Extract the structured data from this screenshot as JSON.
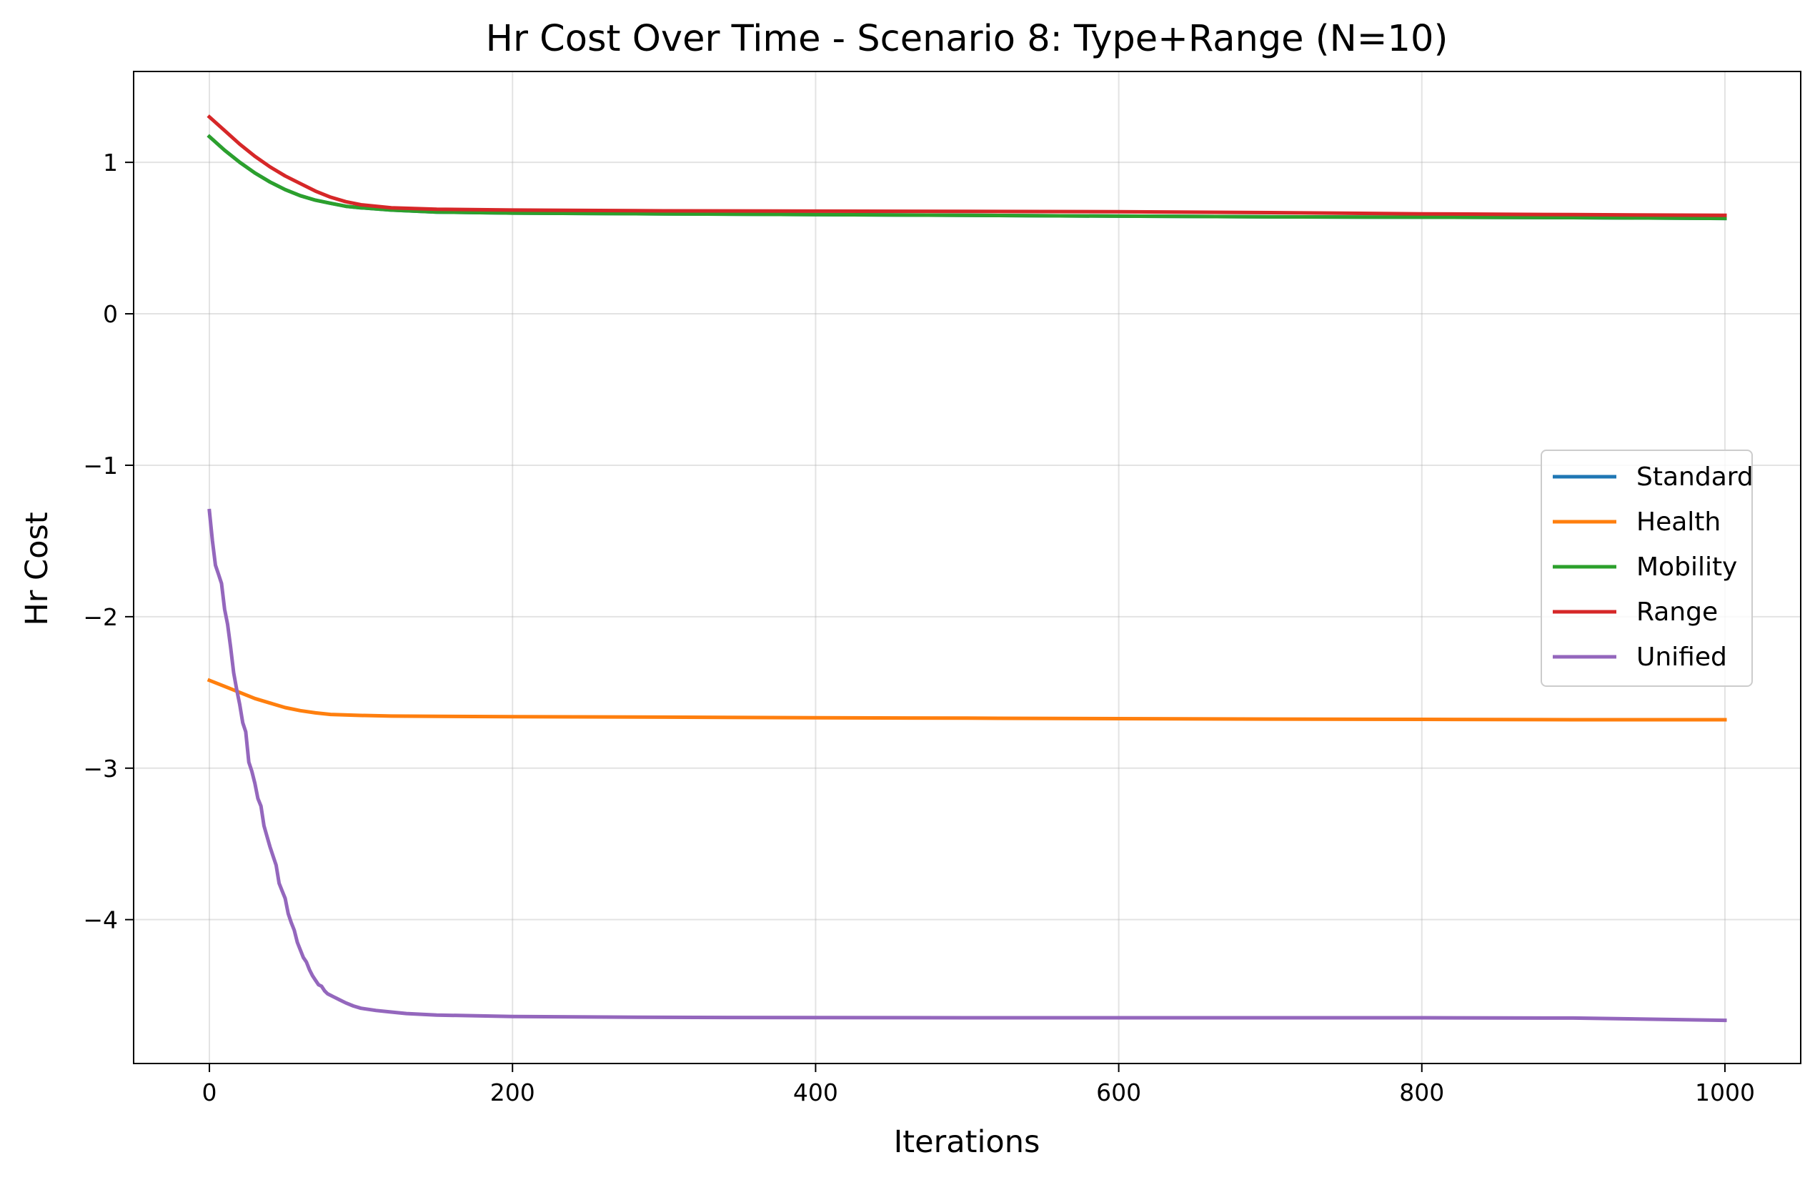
{
  "chart_data": {
    "type": "line",
    "title": "Hr Cost Over Time - Scenario 8: Type+Range (N=10)",
    "xlabel": "Iterations",
    "ylabel": "Hr Cost",
    "xlim": [
      -50,
      1050
    ],
    "ylim": [
      -4.95,
      1.6
    ],
    "xticks": [
      0,
      200,
      400,
      600,
      800,
      1000
    ],
    "yticks": [
      1,
      0,
      -1,
      -2,
      -3,
      -4
    ],
    "ytick_labels": [
      "1",
      "0",
      "−1",
      "−2",
      "−3",
      "−4"
    ],
    "grid": true,
    "legend_position": "center-right",
    "series": [
      {
        "name": "Standard",
        "color": "#1f77b4",
        "x": [
          0,
          10,
          20,
          30,
          40,
          50,
          60,
          70,
          80,
          90,
          100,
          120,
          150,
          200,
          300,
          400,
          500,
          600,
          700,
          800,
          900,
          1000
        ],
        "y": [
          1.17,
          1.08,
          1.0,
          0.93,
          0.87,
          0.82,
          0.78,
          0.75,
          0.73,
          0.71,
          0.7,
          0.685,
          0.672,
          0.665,
          0.66,
          0.655,
          0.65,
          0.645,
          0.64,
          0.638,
          0.635,
          0.63
        ]
      },
      {
        "name": "Health",
        "color": "#ff7f0e",
        "x": [
          0,
          10,
          20,
          30,
          40,
          50,
          60,
          70,
          80,
          100,
          120,
          150,
          200,
          300,
          400,
          500,
          600,
          700,
          800,
          900,
          1000
        ],
        "y": [
          -2.42,
          -2.46,
          -2.5,
          -2.54,
          -2.57,
          -2.6,
          -2.62,
          -2.635,
          -2.645,
          -2.652,
          -2.656,
          -2.658,
          -2.66,
          -2.663,
          -2.667,
          -2.67,
          -2.673,
          -2.676,
          -2.678,
          -2.68,
          -2.68
        ]
      },
      {
        "name": "Mobility",
        "color": "#2ca02c",
        "x": [
          0,
          10,
          20,
          30,
          40,
          50,
          60,
          70,
          80,
          90,
          100,
          120,
          150,
          200,
          300,
          400,
          500,
          600,
          700,
          800,
          900,
          1000
        ],
        "y": [
          1.17,
          1.08,
          1.0,
          0.93,
          0.87,
          0.82,
          0.78,
          0.75,
          0.73,
          0.71,
          0.7,
          0.685,
          0.672,
          0.665,
          0.66,
          0.655,
          0.65,
          0.645,
          0.64,
          0.638,
          0.635,
          0.63
        ]
      },
      {
        "name": "Range",
        "color": "#d62728",
        "x": [
          0,
          10,
          20,
          30,
          40,
          50,
          60,
          70,
          80,
          90,
          100,
          120,
          150,
          200,
          300,
          400,
          500,
          600,
          700,
          800,
          900,
          1000
        ],
        "y": [
          1.3,
          1.21,
          1.12,
          1.04,
          0.97,
          0.91,
          0.86,
          0.81,
          0.77,
          0.74,
          0.72,
          0.7,
          0.69,
          0.685,
          0.68,
          0.678,
          0.676,
          0.674,
          0.668,
          0.66,
          0.655,
          0.65
        ]
      },
      {
        "name": "Unified",
        "color": "#9467bd",
        "x": [
          0,
          2,
          4,
          6,
          8,
          10,
          12,
          14,
          16,
          18,
          20,
          22,
          24,
          26,
          28,
          30,
          32,
          34,
          36,
          38,
          40,
          42,
          44,
          46,
          48,
          50,
          52,
          54,
          56,
          58,
          60,
          62,
          64,
          66,
          68,
          70,
          72,
          74,
          76,
          78,
          80,
          82,
          84,
          86,
          88,
          90,
          95,
          100,
          110,
          120,
          130,
          150,
          200,
          300,
          400,
          500,
          600,
          700,
          800,
          900,
          1000
        ],
        "y": [
          -1.3,
          -1.5,
          -1.66,
          -1.72,
          -1.78,
          -1.95,
          -2.05,
          -2.2,
          -2.37,
          -2.48,
          -2.58,
          -2.7,
          -2.76,
          -2.96,
          -3.02,
          -3.1,
          -3.2,
          -3.25,
          -3.38,
          -3.45,
          -3.52,
          -3.58,
          -3.64,
          -3.76,
          -3.81,
          -3.86,
          -3.96,
          -4.02,
          -4.07,
          -4.15,
          -4.2,
          -4.25,
          -4.28,
          -4.33,
          -4.37,
          -4.4,
          -4.43,
          -4.44,
          -4.47,
          -4.49,
          -4.5,
          -4.51,
          -4.52,
          -4.53,
          -4.54,
          -4.55,
          -4.57,
          -4.585,
          -4.6,
          -4.61,
          -4.62,
          -4.63,
          -4.64,
          -4.645,
          -4.647,
          -4.648,
          -4.648,
          -4.648,
          -4.648,
          -4.65,
          -4.665
        ]
      }
    ]
  }
}
